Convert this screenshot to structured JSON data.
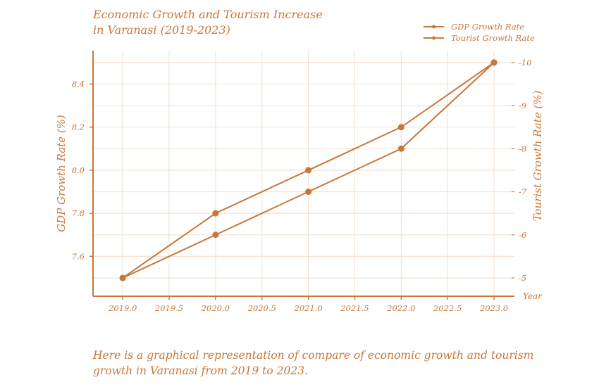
{
  "chart_data": {
    "type": "line",
    "title_line1": "Economic Growth and Tourism Increase",
    "title_line2": "in Varanasi (2019-2023)",
    "xlabel": "Year",
    "ylabel": "GDP Growth Rate (%)",
    "y2label": "Tourist Growth Rate (%)",
    "x": [
      2019,
      2020,
      2021,
      2022,
      2023
    ],
    "xlim": [
      2018.68,
      2023.22
    ],
    "ylim": [
      7.415,
      8.555
    ],
    "y2lim": [
      -4.575,
      -10.275
    ],
    "xticks": [
      2019.0,
      2019.5,
      2020.0,
      2020.5,
      2021.0,
      2021.5,
      2022.0,
      2022.5,
      2023.0
    ],
    "yticks": [
      7.6,
      7.8,
      8.0,
      8.2,
      8.4
    ],
    "y2ticks": [
      -5,
      -6,
      -7,
      -8,
      -9,
      -10
    ],
    "grid": true,
    "legend_position": "top-right",
    "series": [
      {
        "name": "GDP Growth Rate",
        "axis": "left",
        "values": [
          7.5,
          7.8,
          8.0,
          8.2,
          8.5
        ],
        "color": "#c8773a"
      },
      {
        "name": "Tourist Growth Rate",
        "axis": "right",
        "values": [
          -5,
          -6,
          -7,
          -8,
          -10
        ],
        "color": "#c8773a"
      }
    ]
  },
  "caption": "Here is a graphical representation of compare of economic growth and tourism growth in Varanasi from 2019 to 2023."
}
